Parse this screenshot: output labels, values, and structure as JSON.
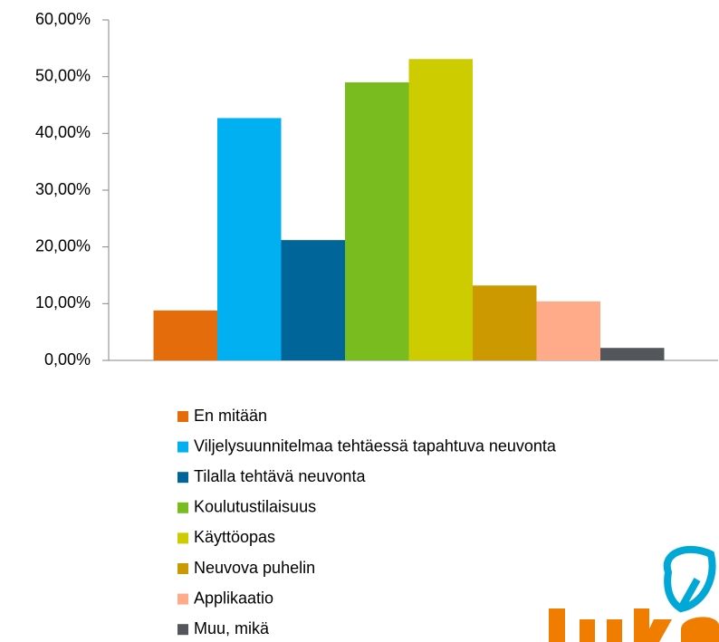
{
  "chart_data": {
    "type": "bar",
    "categories": [
      null
    ],
    "series": [
      {
        "name": "En mitään",
        "color": "#e46c0a",
        "values": [
          8.8
        ]
      },
      {
        "name": "Viljelysuunnitelmaa tehtäessä tapahtuva neuvonta",
        "color": "#00b0f0",
        "values": [
          42.7
        ]
      },
      {
        "name": "Tilalla tehtävä neuvonta",
        "color": "#00669a",
        "values": [
          21.2
        ]
      },
      {
        "name": "Koulutustilaisuus",
        "color": "#78bc20",
        "values": [
          49.0
        ]
      },
      {
        "name": "Käyttöopas",
        "color": "#cccc00",
        "values": [
          53.1
        ]
      },
      {
        "name": "Neuvova puhelin",
        "color": "#cc9900",
        "values": [
          13.2
        ]
      },
      {
        "name": "Applikaatio",
        "color": "#ffaa88",
        "values": [
          10.4
        ]
      },
      {
        "name": "Muu, mikä",
        "color": "#53575c",
        "values": [
          2.2
        ]
      }
    ],
    "ylim": [
      0,
      60
    ],
    "yticks": [
      {
        "value": 0,
        "label": "0,00%"
      },
      {
        "value": 10,
        "label": "10,00%"
      },
      {
        "value": 20,
        "label": "20,00%"
      },
      {
        "value": 30,
        "label": "30,00%"
      },
      {
        "value": 40,
        "label": "40,00%"
      },
      {
        "value": 50,
        "label": "50,00%"
      },
      {
        "value": 60,
        "label": "60,00%"
      }
    ],
    "grid": false,
    "legend": "bottom"
  }
}
